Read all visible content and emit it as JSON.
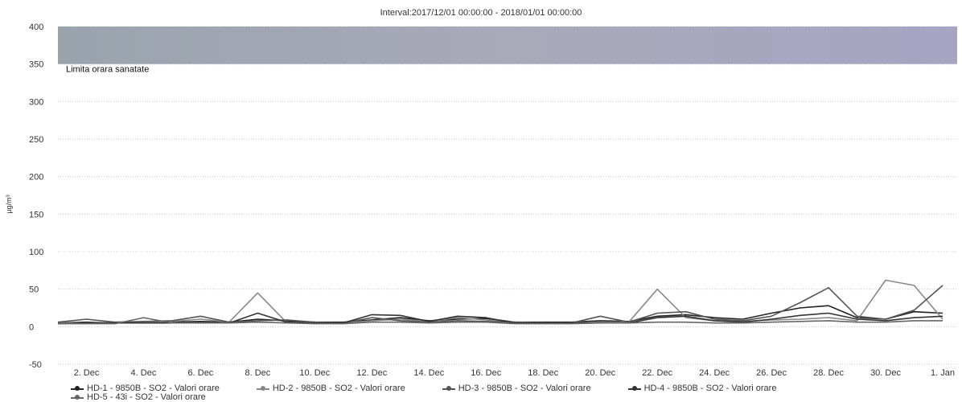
{
  "chart_data": {
    "type": "line",
    "title": "Interval:2017/12/01 00:00:00 - 2018/01/01 00:00:00",
    "ylabel": "µg/m³",
    "xlabel": "",
    "ylim": [
      -50,
      400
    ],
    "yticks": [
      -50,
      0,
      50,
      100,
      150,
      200,
      250,
      300,
      350,
      400
    ],
    "xlim": [
      "2017-12-01",
      "2018-01-01"
    ],
    "xticks": [
      {
        "date": "2017-12-02",
        "label": "2. Dec"
      },
      {
        "date": "2017-12-04",
        "label": "4. Dec"
      },
      {
        "date": "2017-12-06",
        "label": "6. Dec"
      },
      {
        "date": "2017-12-08",
        "label": "8. Dec"
      },
      {
        "date": "2017-12-10",
        "label": "10. Dec"
      },
      {
        "date": "2017-12-12",
        "label": "12. Dec"
      },
      {
        "date": "2017-12-14",
        "label": "14. Dec"
      },
      {
        "date": "2017-12-16",
        "label": "16. Dec"
      },
      {
        "date": "2017-12-18",
        "label": "18. Dec"
      },
      {
        "date": "2017-12-20",
        "label": "20. Dec"
      },
      {
        "date": "2017-12-22",
        "label": "22. Dec"
      },
      {
        "date": "2017-12-24",
        "label": "24. Dec"
      },
      {
        "date": "2017-12-26",
        "label": "26. Dec"
      },
      {
        "date": "2017-12-28",
        "label": "28. Dec"
      },
      {
        "date": "2017-12-30",
        "label": "30. Dec"
      },
      {
        "date": "2018-01-01",
        "label": "1. Jan"
      }
    ],
    "grid": true,
    "band": {
      "from": 350,
      "to": 400,
      "label": "Limita orara sanatate"
    },
    "series": [
      {
        "name": "HD-1 - 9850B - SO2 - Valori orare",
        "color": "#222222",
        "x": [
          "2017-12-01",
          "2017-12-02",
          "2017-12-03",
          "2017-12-04",
          "2017-12-05",
          "2017-12-06",
          "2017-12-07",
          "2017-12-08",
          "2017-12-09",
          "2017-12-10",
          "2017-12-11",
          "2017-12-12",
          "2017-12-13",
          "2017-12-14",
          "2017-12-15",
          "2017-12-16",
          "2017-12-17",
          "2017-12-18",
          "2017-12-19",
          "2017-12-20",
          "2017-12-21",
          "2017-12-22",
          "2017-12-23",
          "2017-12-24",
          "2017-12-25",
          "2017-12-26",
          "2017-12-27",
          "2017-12-28",
          "2017-12-29",
          "2017-12-30",
          "2017-12-31",
          "2018-01-01"
        ],
        "y": [
          5,
          6,
          5,
          6,
          6,
          7,
          6,
          10,
          8,
          6,
          6,
          9,
          12,
          8,
          10,
          11,
          6,
          6,
          6,
          8,
          7,
          14,
          16,
          12,
          10,
          18,
          25,
          28,
          12,
          10,
          20,
          18
        ]
      },
      {
        "name": "HD-2 - 9850B - SO2 - Valori orare",
        "color": "#888888",
        "x": [
          "2017-12-01",
          "2017-12-02",
          "2017-12-03",
          "2017-12-04",
          "2017-12-05",
          "2017-12-06",
          "2017-12-07",
          "2017-12-08",
          "2017-12-09",
          "2017-12-10",
          "2017-12-11",
          "2017-12-12",
          "2017-12-13",
          "2017-12-14",
          "2017-12-15",
          "2017-12-16",
          "2017-12-17",
          "2017-12-18",
          "2017-12-19",
          "2017-12-20",
          "2017-12-21",
          "2017-12-22",
          "2017-12-23",
          "2017-12-24",
          "2017-12-25",
          "2017-12-26",
          "2017-12-27",
          "2017-12-28",
          "2017-12-29",
          "2017-12-30",
          "2017-12-31",
          "2018-01-01"
        ],
        "y": [
          5,
          5,
          6,
          6,
          7,
          10,
          6,
          45,
          6,
          5,
          5,
          8,
          10,
          7,
          12,
          9,
          6,
          5,
          5,
          6,
          6,
          50,
          12,
          8,
          7,
          9,
          10,
          12,
          8,
          62,
          55,
          10
        ]
      },
      {
        "name": "HD-3 - 9850B - SO2 - Valori orare",
        "color": "#555555",
        "x": [
          "2017-12-01",
          "2017-12-02",
          "2017-12-03",
          "2017-12-04",
          "2017-12-05",
          "2017-12-06",
          "2017-12-07",
          "2017-12-08",
          "2017-12-09",
          "2017-12-10",
          "2017-12-11",
          "2017-12-12",
          "2017-12-13",
          "2017-12-14",
          "2017-12-15",
          "2017-12-16",
          "2017-12-17",
          "2017-12-18",
          "2017-12-19",
          "2017-12-20",
          "2017-12-21",
          "2017-12-22",
          "2017-12-23",
          "2017-12-24",
          "2017-12-25",
          "2017-12-26",
          "2017-12-27",
          "2017-12-28",
          "2017-12-29",
          "2017-12-30",
          "2017-12-31",
          "2018-01-01"
        ],
        "y": [
          6,
          10,
          6,
          7,
          8,
          14,
          6,
          8,
          9,
          6,
          5,
          12,
          8,
          6,
          8,
          7,
          6,
          5,
          5,
          14,
          6,
          18,
          20,
          10,
          8,
          14,
          32,
          52,
          14,
          10,
          22,
          55
        ]
      },
      {
        "name": "HD-4 - 9850B - SO2 - Valori orare",
        "color": "#333333",
        "x": [
          "2017-12-01",
          "2017-12-02",
          "2017-12-03",
          "2017-12-04",
          "2017-12-05",
          "2017-12-06",
          "2017-12-07",
          "2017-12-08",
          "2017-12-09",
          "2017-12-10",
          "2017-12-11",
          "2017-12-12",
          "2017-12-13",
          "2017-12-14",
          "2017-12-15",
          "2017-12-16",
          "2017-12-17",
          "2017-12-18",
          "2017-12-19",
          "2017-12-20",
          "2017-12-21",
          "2017-12-22",
          "2017-12-23",
          "2017-12-24",
          "2017-12-25",
          "2017-12-26",
          "2017-12-27",
          "2017-12-28",
          "2017-12-29",
          "2017-12-30",
          "2017-12-31",
          "2018-01-01"
        ],
        "y": [
          4,
          5,
          5,
          5,
          5,
          6,
          5,
          18,
          6,
          5,
          5,
          16,
          15,
          7,
          14,
          12,
          5,
          5,
          5,
          5,
          5,
          12,
          14,
          8,
          6,
          10,
          15,
          18,
          10,
          8,
          12,
          14
        ]
      },
      {
        "name": "HD-5 - 43i - SO2 - Valori orare",
        "color": "#666666",
        "x": [
          "2017-12-01",
          "2017-12-02",
          "2017-12-03",
          "2017-12-04",
          "2017-12-05",
          "2017-12-06",
          "2017-12-07",
          "2017-12-08",
          "2017-12-09",
          "2017-12-10",
          "2017-12-11",
          "2017-12-12",
          "2017-12-13",
          "2017-12-14",
          "2017-12-15",
          "2017-12-16",
          "2017-12-17",
          "2017-12-18",
          "2017-12-19",
          "2017-12-20",
          "2017-12-21",
          "2017-12-22",
          "2017-12-23",
          "2017-12-24",
          "2017-12-25",
          "2017-12-26",
          "2017-12-27",
          "2017-12-28",
          "2017-12-29",
          "2017-12-30",
          "2017-12-31",
          "2018-01-01"
        ],
        "y": [
          4,
          4,
          4,
          12,
          5,
          5,
          5,
          6,
          5,
          4,
          4,
          6,
          6,
          5,
          6,
          6,
          4,
          4,
          4,
          5,
          5,
          6,
          6,
          5,
          5,
          6,
          7,
          8,
          6,
          6,
          8,
          8
        ]
      }
    ]
  },
  "legend": {
    "items": [
      "HD-1 - 9850B - SO2 - Valori orare",
      "HD-2 - 9850B - SO2 - Valori orare",
      "HD-3 - 9850B - SO2 - Valori orare",
      "HD-4 - 9850B - SO2 - Valori orare",
      "HD-5 - 43i - SO2 - Valori orare"
    ]
  }
}
